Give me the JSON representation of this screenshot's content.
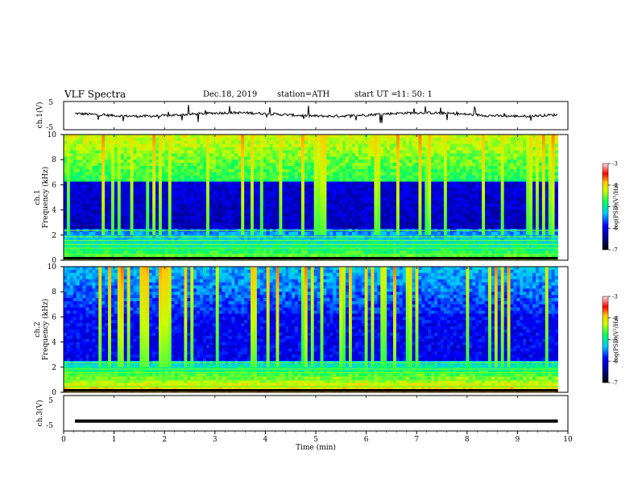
{
  "header": {
    "title": "VLF  Spectra",
    "date": "Dec.18, 2019",
    "station": "station=ATH",
    "start_label": "start  UT  =",
    "start_value": "11: 50: 1"
  },
  "colors": {
    "background": "#ffffff",
    "axis": "#000000",
    "spectrogram_low": "#000040",
    "spectrogram_high": "#ff0000"
  },
  "chart_data": [
    {
      "type": "line",
      "name": "ch1-waveform",
      "ylabel": "ch.1(V)",
      "ylim": [
        -5,
        5
      ],
      "yticks": [
        "5",
        "-5"
      ],
      "xlim": [
        0,
        10
      ],
      "baseline_v": 0.4,
      "grid": false
    },
    {
      "type": "heatmap",
      "name": "ch1-spectrogram",
      "ylabel": "ch.1\nFrequency (kHz)",
      "ylabel_top": "ch.1",
      "ylabel_bottom": "Frequency  (kHz)",
      "ylim": [
        0,
        10
      ],
      "yticks": [
        "0",
        "2",
        "4",
        "6",
        "8",
        "10"
      ],
      "xlim": [
        0,
        10
      ],
      "colorbar": {
        "label": "log(PSD)(V²/Hz)",
        "range": [
          -7,
          -3
        ],
        "ticks": [
          "-3",
          "-4",
          "-5",
          "-6",
          "-7"
        ]
      }
    },
    {
      "type": "heatmap",
      "name": "ch2-spectrogram",
      "ylabel_top": "ch.2",
      "ylabel_bottom": "Frequency  (kHz)",
      "ylim": [
        0,
        10
      ],
      "yticks": [
        "0",
        "2",
        "4",
        "6",
        "8",
        "10"
      ],
      "xlim": [
        0,
        10
      ],
      "colorbar": {
        "label": "log(PSD)(V²/Hz)",
        "range": [
          -7,
          -3
        ],
        "ticks": [
          "-3",
          "-4",
          "-5",
          "-6",
          "-7"
        ]
      }
    },
    {
      "type": "line",
      "name": "ch3-waveform",
      "ylabel": "ch.3(V)",
      "ylim": [
        -5,
        5
      ],
      "yticks": [
        "5",
        "-5"
      ],
      "xlim": [
        0,
        10
      ],
      "baseline_v": -2.2,
      "grid": false
    }
  ],
  "xaxis": {
    "label": "Time  (min)",
    "ticks": [
      "0",
      "1",
      "2",
      "3",
      "4",
      "5",
      "6",
      "7",
      "8",
      "9",
      "10"
    ],
    "data_end": 9.8
  }
}
